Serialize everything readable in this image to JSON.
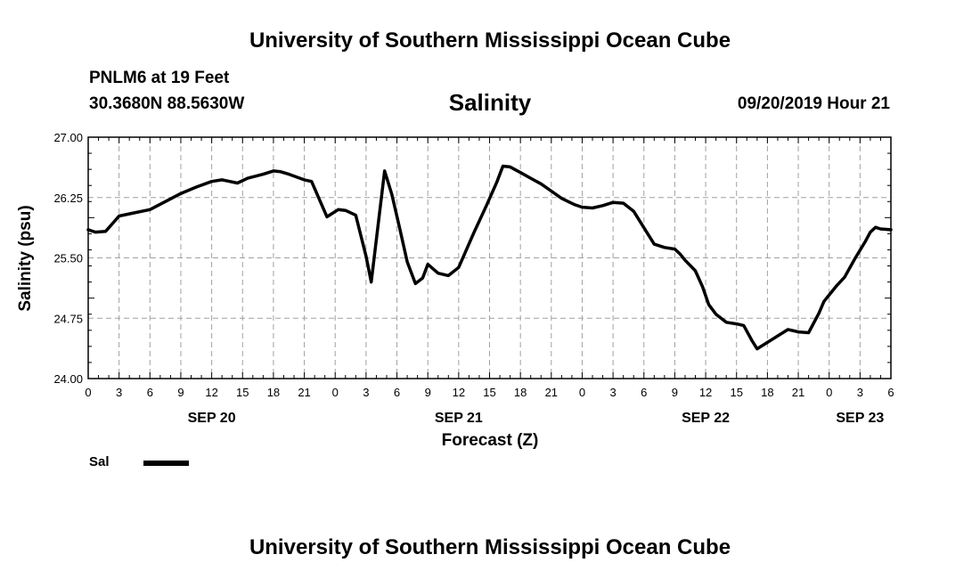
{
  "header": {
    "title_top": "University of Southern Mississippi Ocean Cube",
    "title_bottom": "University of Southern Mississippi Ocean Cube",
    "station": "PNLM6 at 19 Feet",
    "coords": "30.3680N 88.5630W",
    "datetime": "09/20/2019 Hour 21"
  },
  "chart_data": {
    "type": "line",
    "title": "Salinity",
    "xlabel": "Forecast (Z)",
    "ylabel": "Salinity (psu)",
    "x_unit": "hours from 2019-09-20 00Z",
    "xlim": [
      0,
      78
    ],
    "ylim": [
      24.0,
      27.0
    ],
    "yticks": [
      "24.00",
      "24.75",
      "25.50",
      "26.25",
      "27.00"
    ],
    "ytick_values": [
      24.0,
      24.75,
      25.5,
      26.25,
      27.0
    ],
    "xtick_hours": [
      0,
      3,
      6,
      9,
      12,
      15,
      18,
      21,
      24,
      27,
      30,
      33,
      36,
      39,
      42,
      45,
      48,
      51,
      54,
      57,
      60,
      63,
      66,
      69,
      72,
      75,
      78
    ],
    "xtick_labels": [
      "0",
      "3",
      "6",
      "9",
      "12",
      "15",
      "18",
      "21",
      "0",
      "3",
      "6",
      "9",
      "12",
      "15",
      "18",
      "21",
      "0",
      "3",
      "6",
      "9",
      "12",
      "15",
      "18",
      "21",
      "0",
      "3",
      "6"
    ],
    "date_labels": [
      {
        "hour": 12,
        "label": "SEP 20"
      },
      {
        "hour": 36,
        "label": "SEP 21"
      },
      {
        "hour": 60,
        "label": "SEP 22"
      },
      {
        "hour": 75,
        "label": "SEP 23"
      }
    ],
    "grid": true,
    "legend": {
      "label": "Sal",
      "placement": "bottom-left"
    },
    "series": [
      {
        "name": "Sal",
        "x": [
          0,
          0.7,
          1.7,
          3,
          4.5,
          6,
          7.5,
          9,
          10.5,
          12,
          13,
          14.5,
          15.5,
          17,
          18,
          18.7,
          19.5,
          21,
          21.7,
          23.2,
          24.3,
          25,
          26,
          27,
          27.5,
          28.8,
          29.5,
          30.3,
          31,
          31.8,
          32.5,
          33,
          34,
          35,
          36,
          37.5,
          38.7,
          39.7,
          40.3,
          41,
          42,
          43,
          44,
          45,
          46,
          46.8,
          47.3,
          48,
          49,
          50,
          51,
          52,
          53,
          55,
          56,
          57,
          57.5,
          58,
          59,
          59.7,
          60.3,
          61,
          62,
          63,
          63.7,
          64.5,
          65,
          66,
          67,
          68,
          69,
          70,
          71,
          71.5,
          72,
          72.7,
          73.5,
          74.5,
          75.5,
          76,
          76.5,
          77,
          78
        ],
        "y": [
          25.85,
          25.82,
          25.83,
          26.02,
          26.06,
          26.1,
          26.2,
          26.3,
          26.38,
          26.45,
          26.47,
          26.43,
          26.49,
          26.54,
          26.58,
          26.57,
          26.54,
          26.47,
          26.45,
          26.01,
          26.1,
          26.09,
          26.03,
          25.52,
          25.2,
          26.58,
          26.29,
          25.85,
          25.45,
          25.18,
          25.25,
          25.42,
          25.31,
          25.28,
          25.38,
          25.82,
          26.15,
          26.44,
          26.64,
          26.63,
          26.56,
          26.49,
          26.42,
          26.33,
          26.24,
          26.19,
          26.16,
          26.13,
          26.12,
          26.15,
          26.19,
          26.18,
          26.08,
          25.67,
          25.63,
          25.61,
          25.55,
          25.47,
          25.34,
          25.14,
          24.92,
          24.8,
          24.7,
          24.68,
          24.66,
          24.47,
          24.37,
          24.45,
          24.53,
          24.61,
          24.58,
          24.57,
          24.81,
          24.96,
          25.04,
          25.15,
          25.26,
          25.49,
          25.7,
          25.82,
          25.88,
          25.86,
          25.85
        ]
      }
    ]
  }
}
